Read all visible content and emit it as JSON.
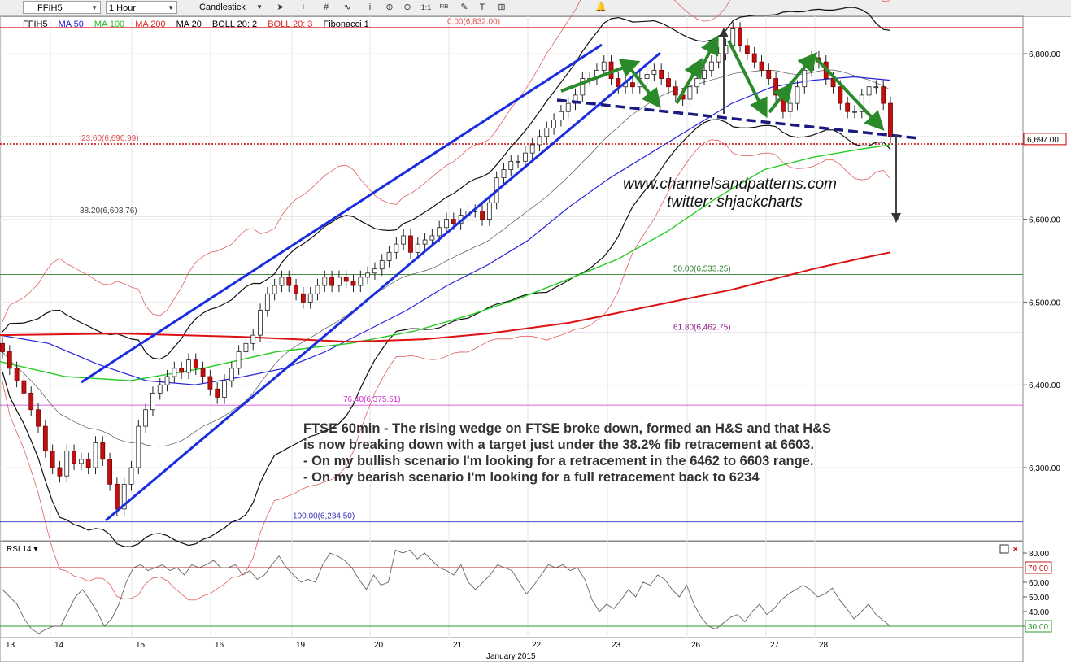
{
  "toolbar": {
    "symbol": "FFIH5",
    "interval": "1 Hour",
    "chart_style": "Candlestick",
    "fib_label": "FIB",
    "scale_label": "1:1"
  },
  "indicators": {
    "symbol": "FFIH5",
    "items": [
      {
        "label": "MA 50",
        "color": "#2222dd"
      },
      {
        "label": "MA 100",
        "color": "#22bb22"
      },
      {
        "label": "MA 200",
        "color": "#dd2222"
      },
      {
        "label": "MA 20",
        "color": "#111111"
      },
      {
        "label": "BOLL 20; 2",
        "color": "#111111"
      },
      {
        "label": "BOLL 20; 3",
        "color": "#dd2222"
      },
      {
        "label": "Fibonacci 1",
        "color": "#111111"
      }
    ]
  },
  "chart_data": {
    "type": "candlestick",
    "title": "FTSE 60min",
    "xlabel": "January 2015",
    "x_ticks": [
      "13",
      "14",
      "15",
      "16",
      "19",
      "20",
      "21",
      "22",
      "23",
      "26",
      "27",
      "28"
    ],
    "y_ticks": [
      "6,800.00",
      "6,700.00",
      "6,600.00",
      "6,500.00",
      "6,400.00",
      "6,300.00"
    ],
    "ylim": [
      6220,
      6860
    ],
    "current_price": "6,697.00",
    "fib_levels": [
      {
        "label": "0.00(6,832.00)",
        "value": 6832.0,
        "color": "#e05050"
      },
      {
        "label": "23.60(6,690.99)",
        "value": 6690.99,
        "color": "#e05050"
      },
      {
        "label": "38.20(6,603.76)",
        "value": 6603.76,
        "color": "#444444"
      },
      {
        "label": "50.00(6,533.25)",
        "value": 6533.25,
        "color": "#2e7d2e"
      },
      {
        "label": "61.80(6,462.75)",
        "value": 6462.75,
        "color": "#8b1a8b"
      },
      {
        "label": "76.40(6,375.51)",
        "value": 6375.51,
        "color": "#d030d0"
      },
      {
        "label": "100.00(6,234.50)",
        "value": 6234.5,
        "color": "#3333bb"
      }
    ],
    "watermark": [
      "www.channelsandpatterns.com",
      "twitter: shjackcharts"
    ],
    "annotation": [
      "FTSE 60min - The rising wedge on FTSE broke down, formed an H&S and that H&S",
      "is now breaking down with a target just under the 38.2% fib retracement at 6603.",
      "- On my bullish scenario I'm looking for a retracement in the 6462 to 6603 range.",
      "- On my bearish scenario I'm looking for a full retracement back to 6234"
    ],
    "close_series": [
      6440,
      6420,
      6405,
      6390,
      6370,
      6350,
      6320,
      6300,
      6290,
      6320,
      6305,
      6310,
      6300,
      6330,
      6310,
      6280,
      6250,
      6280,
      6300,
      6350,
      6370,
      6390,
      6400,
      6410,
      6420,
      6415,
      6430,
      6420,
      6410,
      6395,
      6385,
      6405,
      6420,
      6440,
      6450,
      6460,
      6490,
      6510,
      6520,
      6530,
      6520,
      6510,
      6500,
      6510,
      6520,
      6530,
      6520,
      6530,
      6525,
      6520,
      6530,
      6535,
      6540,
      6550,
      6560,
      6570,
      6580,
      6560,
      6570,
      6575,
      6580,
      6590,
      6600,
      6595,
      6605,
      6610,
      6610,
      6600,
      6620,
      6650,
      6660,
      6670,
      6670,
      6680,
      6690,
      6700,
      6710,
      6720,
      6730,
      6740,
      6750,
      6770,
      6770,
      6780,
      6790,
      6770,
      6760,
      6765,
      6760,
      6770,
      6775,
      6780,
      6770,
      6760,
      6750,
      6745,
      6760,
      6770,
      6780,
      6790,
      6800,
      6810,
      6830,
      6810,
      6800,
      6790,
      6780,
      6770,
      6750,
      6730,
      6740,
      6760,
      6780,
      6795,
      6790,
      6770,
      6760,
      6740,
      6730,
      6730,
      6750,
      6760,
      6760,
      6740,
      6700
    ],
    "ma100_points": [
      [
        0,
        6428
      ],
      [
        80,
        6410
      ],
      [
        160,
        6405
      ],
      [
        250,
        6420
      ],
      [
        340,
        6440
      ],
      [
        430,
        6450
      ],
      [
        510,
        6465
      ],
      [
        580,
        6485
      ],
      [
        640,
        6505
      ],
      [
        700,
        6528
      ],
      [
        760,
        6552
      ],
      [
        820,
        6585
      ],
      [
        880,
        6625
      ],
      [
        940,
        6660
      ],
      [
        1000,
        6675
      ],
      [
        1060,
        6685
      ],
      [
        1095,
        6690
      ]
    ],
    "ma200_points": [
      [
        0,
        6460
      ],
      [
        150,
        6462
      ],
      [
        300,
        6458
      ],
      [
        430,
        6452
      ],
      [
        520,
        6455
      ],
      [
        600,
        6462
      ],
      [
        700,
        6475
      ],
      [
        800,
        6495
      ],
      [
        900,
        6515
      ],
      [
        1000,
        6540
      ],
      [
        1060,
        6553
      ],
      [
        1095,
        6560
      ]
    ],
    "ma50_points": [
      [
        0,
        6460
      ],
      [
        60,
        6450
      ],
      [
        120,
        6425
      ],
      [
        180,
        6405
      ],
      [
        240,
        6400
      ],
      [
        300,
        6410
      ],
      [
        350,
        6420
      ],
      [
        400,
        6440
      ],
      [
        450,
        6465
      ],
      [
        500,
        6490
      ],
      [
        550,
        6520
      ],
      [
        600,
        6545
      ],
      [
        650,
        6575
      ],
      [
        700,
        6615
      ],
      [
        750,
        6650
      ],
      [
        800,
        6680
      ],
      [
        850,
        6710
      ],
      [
        900,
        6740
      ],
      [
        950,
        6760
      ],
      [
        1000,
        6768
      ],
      [
        1050,
        6772
      ],
      [
        1095,
        6768
      ]
    ],
    "legend": "none",
    "grid": true,
    "rsi": {
      "label": "RSI 14",
      "y_ticks": [
        "80.00",
        "70.00",
        "60.00",
        "50.00",
        "40.00",
        "30.00"
      ],
      "levels": [
        "70.00",
        "30.00"
      ],
      "ylim": [
        20,
        85
      ],
      "values": [
        55,
        50,
        45,
        35,
        28,
        25,
        28,
        30,
        30,
        40,
        50,
        55,
        48,
        40,
        30,
        35,
        45,
        60,
        70,
        72,
        68,
        70,
        72,
        68,
        70,
        65,
        72,
        70,
        72,
        75,
        70,
        70,
        72,
        65,
        68,
        62,
        65,
        72,
        78,
        70,
        65,
        60,
        62,
        60,
        72,
        80,
        78,
        75,
        70,
        62,
        55,
        65,
        58,
        60,
        82,
        80,
        82,
        76,
        80,
        75,
        70,
        68,
        65,
        72,
        60,
        55,
        60,
        65,
        72,
        70,
        68,
        60,
        52,
        58,
        65,
        72,
        70,
        72,
        68,
        70,
        62,
        48,
        40,
        45,
        42,
        48,
        55,
        50,
        60,
        58,
        65,
        62,
        55,
        50,
        58,
        45,
        36,
        30,
        28,
        32,
        36,
        38,
        33,
        40,
        45,
        38,
        42,
        48,
        52,
        55,
        58,
        55,
        50,
        52,
        56,
        48,
        42,
        35,
        40,
        45,
        38,
        34,
        30
      ]
    }
  }
}
